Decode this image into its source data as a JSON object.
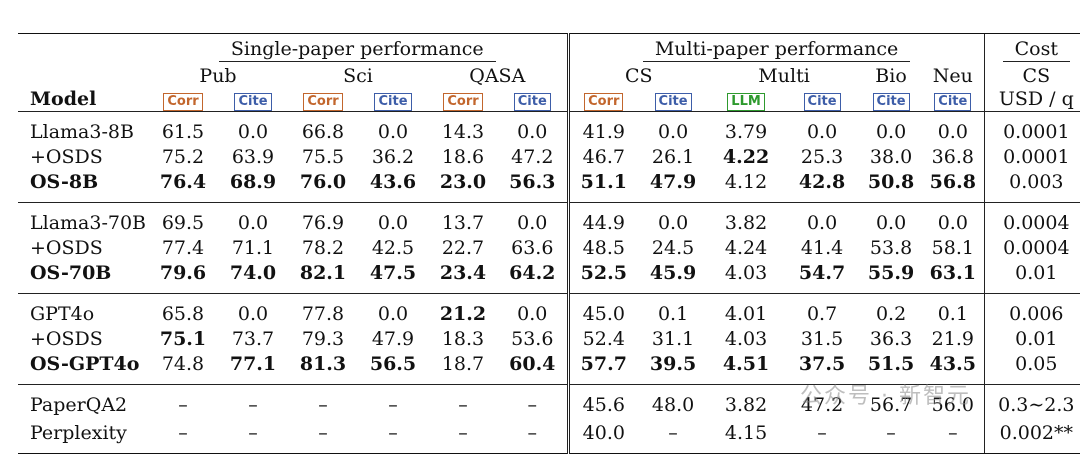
{
  "headers": {
    "single": "Single-paper performance",
    "multi": "Multi-paper performance",
    "cost": "Cost",
    "pub": "Pub",
    "sci": "Sci",
    "qasa": "QASA",
    "cs": "CS",
    "multi_sub": "Multi",
    "bio": "Bio",
    "neu": "Neu",
    "cost_cs": "CS",
    "usd": "USD / q",
    "model": "Model",
    "corr": "Corr",
    "cite": "Cite",
    "llm": "LLM"
  },
  "rows": [
    {
      "model": "Llama3-8B",
      "c": [
        "61.5",
        "0.0",
        "66.8",
        "0.0",
        "14.3",
        "0.0",
        "41.9",
        "0.0",
        "3.79",
        "0.0",
        "0.0",
        "0.0",
        "0.0001"
      ],
      "bold": []
    },
    {
      "model": "+OSDS",
      "c": [
        "75.2",
        "63.9",
        "75.5",
        "36.2",
        "18.6",
        "47.2",
        "46.7",
        "26.1",
        "4.22",
        "25.3",
        "38.0",
        "36.8",
        "0.0001"
      ],
      "bold": [
        8
      ]
    },
    {
      "model": "OS-8B",
      "bm": true,
      "c": [
        "76.4",
        "68.9",
        "76.0",
        "43.6",
        "23.0",
        "56.3",
        "51.1",
        "47.9",
        "4.12",
        "42.8",
        "50.8",
        "56.8",
        "0.003"
      ],
      "bold": [
        0,
        1,
        2,
        3,
        4,
        5,
        6,
        7,
        9,
        10,
        11
      ]
    },
    {
      "model": "Llama3-70B",
      "c": [
        "69.5",
        "0.0",
        "76.9",
        "0.0",
        "13.7",
        "0.0",
        "44.9",
        "0.0",
        "3.82",
        "0.0",
        "0.0",
        "0.0",
        "0.0004"
      ],
      "bold": []
    },
    {
      "model": "+OSDS",
      "c": [
        "77.4",
        "71.1",
        "78.2",
        "42.5",
        "22.7",
        "63.6",
        "48.5",
        "24.5",
        "4.24",
        "41.4",
        "53.8",
        "58.1",
        "0.0004"
      ],
      "bold": []
    },
    {
      "model": "OS-70B",
      "bm": true,
      "c": [
        "79.6",
        "74.0",
        "82.1",
        "47.5",
        "23.4",
        "64.2",
        "52.5",
        "45.9",
        "4.03",
        "54.7",
        "55.9",
        "63.1",
        "0.01"
      ],
      "bold": [
        0,
        1,
        2,
        3,
        4,
        5,
        6,
        7,
        9,
        10,
        11
      ]
    },
    {
      "model": "GPT4o",
      "c": [
        "65.8",
        "0.0",
        "77.8",
        "0.0",
        "21.2",
        "0.0",
        "45.0",
        "0.1",
        "4.01",
        "0.7",
        "0.2",
        "0.1",
        "0.006"
      ],
      "bold": [
        4
      ]
    },
    {
      "model": "+OSDS",
      "c": [
        "75.1",
        "73.7",
        "79.3",
        "47.9",
        "18.3",
        "53.6",
        "52.4",
        "31.1",
        "4.03",
        "31.5",
        "36.3",
        "21.9",
        "0.01"
      ],
      "bold": [
        0
      ]
    },
    {
      "model": "OS-GPT4o",
      "bm": true,
      "c": [
        "74.8",
        "77.1",
        "81.3",
        "56.5",
        "18.7",
        "60.4",
        "57.7",
        "39.5",
        "4.51",
        "37.5",
        "51.5",
        "43.5",
        "0.05"
      ],
      "bold": [
        1,
        2,
        3,
        5,
        6,
        7,
        8,
        9,
        10,
        11
      ]
    },
    {
      "model": "PaperQA2",
      "c": [
        "–",
        "–",
        "–",
        "–",
        "–",
        "–",
        "45.6",
        "48.0",
        "3.82",
        "47.2",
        "56.7",
        "56.0",
        "0.3∼2.3"
      ],
      "bold": []
    },
    {
      "model": "Perplexity",
      "c": [
        "–",
        "–",
        "–",
        "–",
        "–",
        "–",
        "40.0",
        "–",
        "4.15",
        "–",
        "–",
        "–",
        "0.002**"
      ],
      "bold": []
    }
  ],
  "watermark": "公众号 · 新智元"
}
